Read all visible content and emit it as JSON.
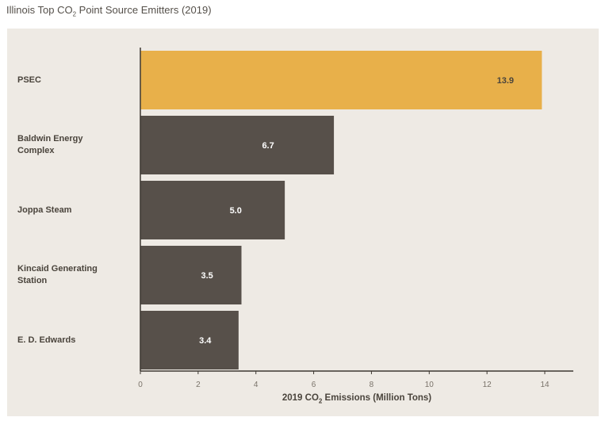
{
  "title": {
    "prefix": "Illinois Top CO",
    "sub": "2",
    "suffix": " Point Source Emitters (2019)"
  },
  "chart_data": {
    "type": "bar",
    "orientation": "horizontal",
    "categories": [
      "PSEC",
      "Baldwin Energy Complex",
      "Joppa Steam",
      "Kincaid Generating Station",
      "E. D. Edwards"
    ],
    "category_lines": [
      [
        "PSEC"
      ],
      [
        "Baldwin Energy",
        "Complex"
      ],
      [
        "Joppa Steam"
      ],
      [
        "Kincaid Generating",
        "Station"
      ],
      [
        "E. D. Edwards"
      ]
    ],
    "values": [
      13.9,
      6.7,
      5.0,
      3.5,
      3.4
    ],
    "value_labels": [
      "13.9",
      "6.7",
      "5.0",
      "3.5",
      "3.4"
    ],
    "bar_colors": [
      "#e8b04a",
      "#57504a",
      "#57504a",
      "#57504a",
      "#57504a"
    ],
    "value_label_colors": [
      "#4a443c",
      "#ffffff",
      "#ffffff",
      "#ffffff",
      "#ffffff"
    ],
    "xlim": [
      0,
      15
    ],
    "xticks": [
      0,
      2,
      4,
      6,
      8,
      10,
      12,
      14
    ],
    "xlabel": {
      "prefix": "2019 CO",
      "sub": "2",
      "suffix": " Emissions (Million Tons)"
    },
    "grid": false
  }
}
